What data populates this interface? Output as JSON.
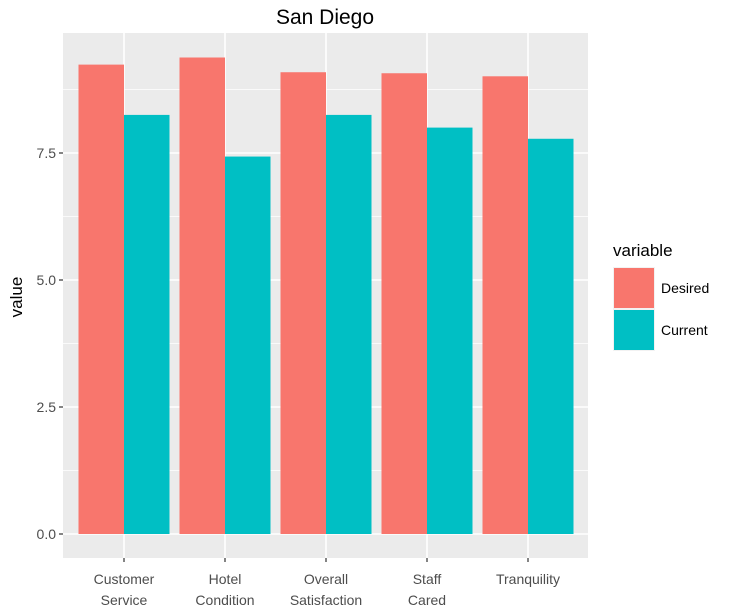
{
  "chart_data": {
    "type": "bar",
    "title": "San Diego",
    "xlabel": "",
    "ylabel": "value",
    "ylim": [
      0,
      9.85
    ],
    "yticks": [
      0.0,
      2.5,
      5.0,
      7.5
    ],
    "ytick_labels": [
      "0.0",
      "2.5",
      "5.0",
      "7.5"
    ],
    "categories": [
      [
        "Customer",
        "Service"
      ],
      [
        "Hotel",
        "Condition"
      ],
      [
        "Overall",
        "Satisfaction"
      ],
      [
        "Staff",
        "Cared"
      ],
      [
        "Tranquility"
      ]
    ],
    "series": [
      {
        "name": "Desired",
        "color": "#F8766D",
        "values": [
          9.24,
          9.38,
          9.09,
          9.07,
          9.01
        ]
      },
      {
        "name": "Current",
        "color": "#00BFC4",
        "values": [
          8.25,
          7.43,
          8.25,
          8.0,
          7.78
        ]
      }
    ],
    "legend": {
      "title": "variable",
      "position": "right"
    },
    "grid": true,
    "panel_background": "#EBEBEB"
  }
}
